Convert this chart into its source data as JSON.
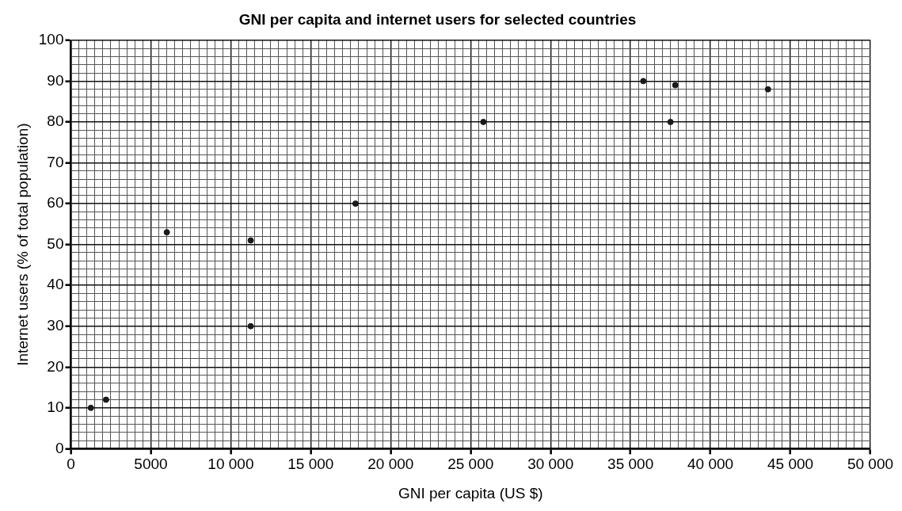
{
  "chart_data": {
    "type": "scatter",
    "title": "GNI per capita and internet users for selected countries",
    "xlabel": "GNI per capita (US $)",
    "ylabel": "Internet users (% of total population)",
    "x": [
      1250,
      2200,
      6000,
      11250,
      11250,
      17800,
      25800,
      35800,
      37800,
      37500,
      43600
    ],
    "values": [
      10,
      12,
      53,
      51,
      30,
      60,
      80,
      90,
      89,
      80,
      88
    ],
    "color": "#1a1a1a",
    "marker": "circle",
    "grid": true,
    "legend": false,
    "xlim": [
      0,
      50000
    ],
    "ylim": [
      0,
      100
    ],
    "xticks": [
      0,
      {
        "value": 500,
        "label": null
      },
      {
        "value": 1000,
        "label": null
      },
      {
        "value": 1500,
        "label": null
      },
      {
        "value": 2000,
        "label": null
      },
      {
        "value": 2500,
        "label": null
      },
      {
        "value": 3000,
        "label": null
      },
      {
        "value": 3500,
        "label": null
      },
      {
        "value": 4000,
        "label": null
      },
      {
        "value": 4500,
        "label": null
      },
      5000,
      {
        "value": 5500,
        "label": null
      },
      {
        "value": 6000,
        "label": null
      },
      {
        "value": 6500,
        "label": null
      },
      {
        "value": 7000,
        "label": null
      },
      {
        "value": 7500,
        "label": null
      },
      {
        "value": 8000,
        "label": null
      },
      {
        "value": 8500,
        "label": null
      },
      {
        "value": 9000,
        "label": null
      },
      {
        "value": 9500,
        "label": null
      },
      {
        "value": 10000,
        "label": "10 000"
      },
      {
        "value": 10500,
        "label": null
      },
      {
        "value": 11000,
        "label": null
      },
      {
        "value": 11500,
        "label": null
      },
      {
        "value": 12000,
        "label": null
      },
      {
        "value": 12500,
        "label": null
      },
      {
        "value": 13000,
        "label": null
      },
      {
        "value": 13500,
        "label": null
      },
      {
        "value": 14000,
        "label": null
      },
      {
        "value": 14500,
        "label": null
      },
      {
        "value": 15000,
        "label": "15 000"
      },
      {
        "value": 15500,
        "label": null
      },
      {
        "value": 16000,
        "label": null
      },
      {
        "value": 16500,
        "label": null
      },
      {
        "value": 17000,
        "label": null
      },
      {
        "value": 17500,
        "label": null
      },
      {
        "value": 18000,
        "label": null
      },
      {
        "value": 18500,
        "label": null
      },
      {
        "value": 19000,
        "label": null
      },
      {
        "value": 19500,
        "label": null
      },
      {
        "value": 20000,
        "label": "20 000"
      },
      {
        "value": 20500,
        "label": null
      },
      {
        "value": 21000,
        "label": null
      },
      {
        "value": 21500,
        "label": null
      },
      {
        "value": 22000,
        "label": null
      },
      {
        "value": 22500,
        "label": null
      },
      {
        "value": 23000,
        "label": null
      },
      {
        "value": 23500,
        "label": null
      },
      {
        "value": 24000,
        "label": null
      },
      {
        "value": 24500,
        "label": null
      },
      {
        "value": 25000,
        "label": "25 000"
      },
      {
        "value": 25500,
        "label": null
      },
      {
        "value": 26000,
        "label": null
      },
      {
        "value": 26500,
        "label": null
      },
      {
        "value": 27000,
        "label": null
      },
      {
        "value": 27500,
        "label": null
      },
      {
        "value": 28000,
        "label": null
      },
      {
        "value": 28500,
        "label": null
      },
      {
        "value": 29000,
        "label": null
      },
      {
        "value": 29500,
        "label": null
      },
      {
        "value": 30000,
        "label": "30 000"
      },
      {
        "value": 30500,
        "label": null
      },
      {
        "value": 31000,
        "label": null
      },
      {
        "value": 31500,
        "label": null
      },
      {
        "value": 32000,
        "label": null
      },
      {
        "value": 32500,
        "label": null
      },
      {
        "value": 33000,
        "label": null
      },
      {
        "value": 33500,
        "label": null
      },
      {
        "value": 34000,
        "label": null
      },
      {
        "value": 34500,
        "label": null
      },
      {
        "value": 35000,
        "label": "35 000"
      },
      {
        "value": 35500,
        "label": null
      },
      {
        "value": 36000,
        "label": null
      },
      {
        "value": 36500,
        "label": null
      },
      {
        "value": 37000,
        "label": null
      },
      {
        "value": 37500,
        "label": null
      },
      {
        "value": 38000,
        "label": null
      },
      {
        "value": 38500,
        "label": null
      },
      {
        "value": 39000,
        "label": null
      },
      {
        "value": 39500,
        "label": null
      },
      {
        "value": 40000,
        "label": "40 000"
      },
      {
        "value": 40500,
        "label": null
      },
      {
        "value": 41000,
        "label": null
      },
      {
        "value": 41500,
        "label": null
      },
      {
        "value": 42000,
        "label": null
      },
      {
        "value": 42500,
        "label": null
      },
      {
        "value": 43000,
        "label": null
      },
      {
        "value": 43500,
        "label": null
      },
      {
        "value": 44000,
        "label": null
      },
      {
        "value": 44500,
        "label": null
      },
      {
        "value": 45000,
        "label": "45 000"
      },
      {
        "value": 45500,
        "label": null
      },
      {
        "value": 46000,
        "label": null
      },
      {
        "value": 46500,
        "label": null
      },
      {
        "value": 47000,
        "label": null
      },
      {
        "value": 47500,
        "label": null
      },
      {
        "value": 48000,
        "label": null
      },
      {
        "value": 48500,
        "label": null
      },
      {
        "value": 49000,
        "label": null
      },
      {
        "value": 49500,
        "label": null
      },
      {
        "value": 50000,
        "label": "50 000"
      }
    ],
    "yticks": [
      0,
      {
        "value": 2,
        "label": null
      },
      {
        "value": 4,
        "label": null
      },
      {
        "value": 6,
        "label": null
      },
      {
        "value": 8,
        "label": null
      },
      10,
      {
        "value": 12,
        "label": null
      },
      {
        "value": 14,
        "label": null
      },
      {
        "value": 16,
        "label": null
      },
      {
        "value": 18,
        "label": null
      },
      20,
      {
        "value": 22,
        "label": null
      },
      {
        "value": 24,
        "label": null
      },
      {
        "value": 26,
        "label": null
      },
      {
        "value": 28,
        "label": null
      },
      30,
      {
        "value": 32,
        "label": null
      },
      {
        "value": 34,
        "label": null
      },
      {
        "value": 36,
        "label": null
      },
      {
        "value": 38,
        "label": null
      },
      40,
      {
        "value": 42,
        "label": null
      },
      {
        "value": 44,
        "label": null
      },
      {
        "value": 46,
        "label": null
      },
      {
        "value": 48,
        "label": null
      },
      50,
      {
        "value": 52,
        "label": null
      },
      {
        "value": 54,
        "label": null
      },
      {
        "value": 56,
        "label": null
      },
      {
        "value": 58,
        "label": null
      },
      60,
      {
        "value": 62,
        "label": null
      },
      {
        "value": 64,
        "label": null
      },
      {
        "value": 66,
        "label": null
      },
      {
        "value": 68,
        "label": null
      },
      70,
      {
        "value": 72,
        "label": null
      },
      {
        "value": 74,
        "label": null
      },
      {
        "value": 76,
        "label": null
      },
      {
        "value": 78,
        "label": null
      },
      80,
      {
        "value": 82,
        "label": null
      },
      {
        "value": 84,
        "label": null
      },
      {
        "value": 86,
        "label": null
      },
      {
        "value": 88,
        "label": null
      },
      90,
      {
        "value": 92,
        "label": null
      },
      {
        "value": 94,
        "label": null
      },
      {
        "value": 96,
        "label": null
      },
      {
        "value": 98,
        "label": null
      },
      100
    ]
  }
}
